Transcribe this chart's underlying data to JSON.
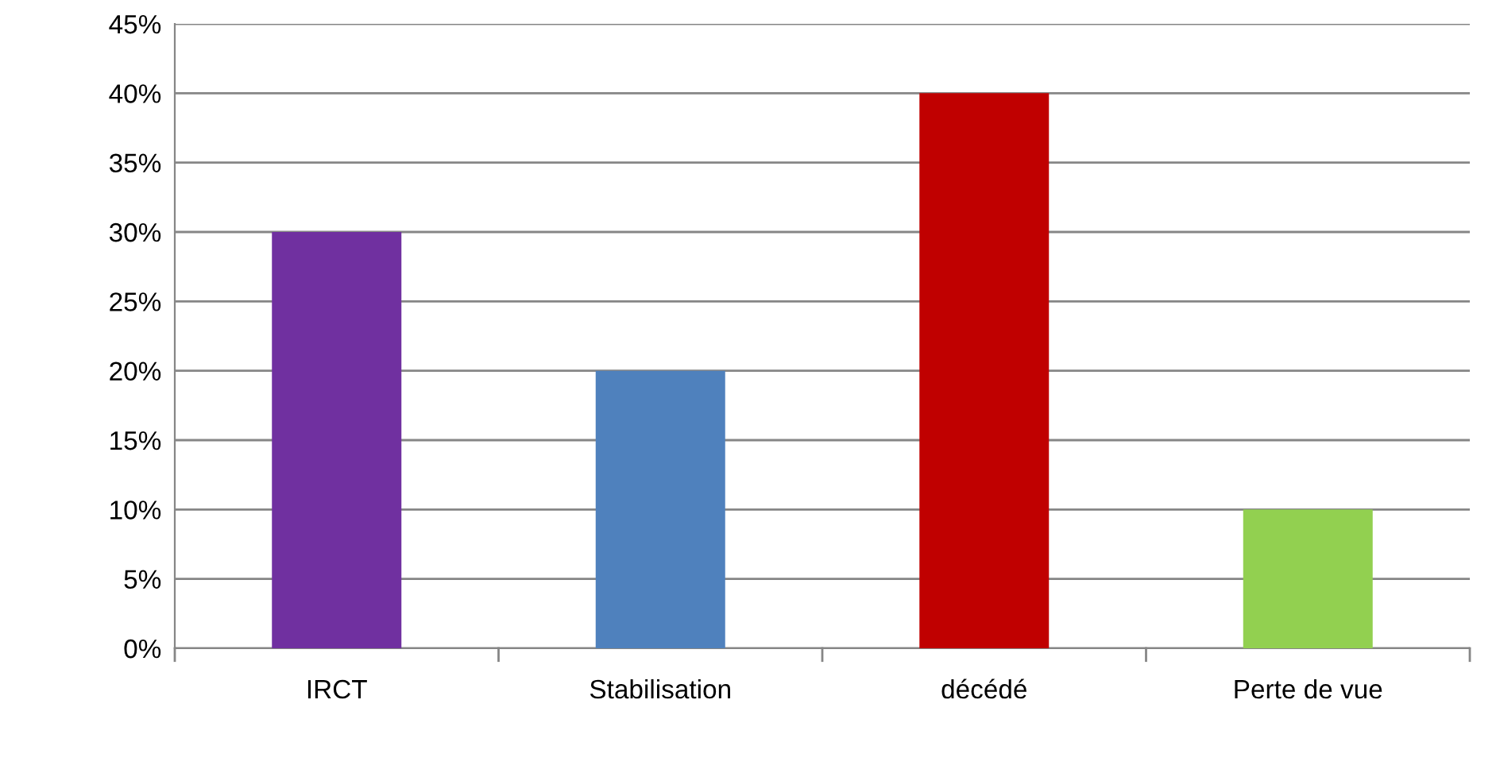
{
  "chart_data": {
    "type": "bar",
    "categories": [
      "IRCT",
      "Stabilisation",
      "décédé",
      "Perte de vue"
    ],
    "values": [
      30,
      20,
      40,
      10
    ],
    "colors": [
      "#7030a0",
      "#4f81bd",
      "#c00000",
      "#92d050"
    ],
    "ylim": [
      0,
      45
    ],
    "yticks": [
      {
        "value": 0,
        "label": "0%"
      },
      {
        "value": 5,
        "label": "5%"
      },
      {
        "value": 10,
        "label": "10%"
      },
      {
        "value": 15,
        "label": "15%"
      },
      {
        "value": 20,
        "label": "20%"
      },
      {
        "value": 25,
        "label": "25%"
      },
      {
        "value": 30,
        "label": "30%"
      },
      {
        "value": 35,
        "label": "35%"
      },
      {
        "value": 40,
        "label": "40%"
      },
      {
        "value": 45,
        "label": "45%"
      }
    ],
    "grid": "y",
    "legend": false
  }
}
